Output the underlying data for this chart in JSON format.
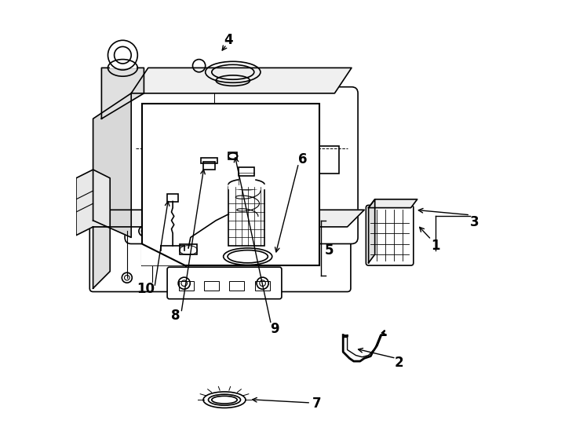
{
  "background_color": "#ffffff",
  "line_color": "#000000",
  "fig_width": 7.34,
  "fig_height": 5.4
}
